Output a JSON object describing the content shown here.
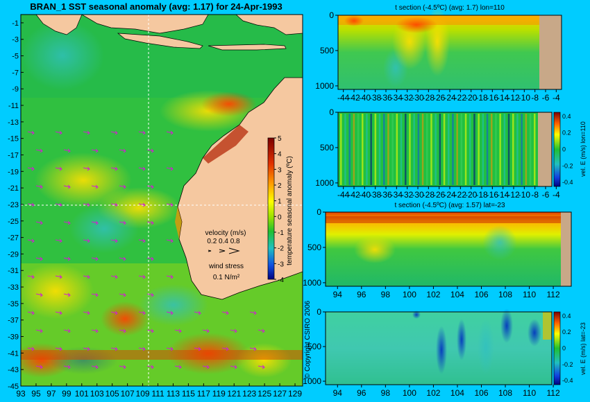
{
  "main_map": {
    "title": "BRAN_1 SST seasonal anomaly (avg: 1.17) for 24-Apr-1993",
    "y_ticks": [
      "-1",
      "-3",
      "-5",
      "-7",
      "-9",
      "-11",
      "-13",
      "-15",
      "-17",
      "-19",
      "-21",
      "-23",
      "-25",
      "-27",
      "-29",
      "-31",
      "-33",
      "-35",
      "-37",
      "-39",
      "-41",
      "-43",
      "-45"
    ],
    "x_ticks": [
      "93",
      "95",
      "97",
      "99",
      "101",
      "103",
      "105",
      "107",
      "109",
      "111",
      "113",
      "115",
      "117",
      "119",
      "121",
      "123",
      "125",
      "127",
      "129"
    ],
    "colorbar_label": "temperature seasonal anomaly (ºC)",
    "colorbar_ticks": [
      "5",
      "4",
      "3",
      "2",
      "1",
      "0",
      "-1",
      "-2",
      "-3",
      "-4"
    ],
    "velocity_label": "velocity (m/s)",
    "velocity_scale": "0.2 0.4 0.8",
    "wind_label": "wind stress",
    "wind_scale": "0.1 N/m²",
    "copyright": "© Copyright CSIRO 2006"
  },
  "section1": {
    "title": "t section (-4.5ºC) (avg: 1.7) lon=110",
    "x_ticks": [
      "-44",
      "-42",
      "-40",
      "-38",
      "-36",
      "-34",
      "-32",
      "-30",
      "-28",
      "-26",
      "-24",
      "-22",
      "-20",
      "-18",
      "-16",
      "-14",
      "-12",
      "-10",
      "-8",
      "-6",
      "-4"
    ],
    "y_ticks": [
      "0",
      "500",
      "1000"
    ]
  },
  "section2": {
    "title": "",
    "x_ticks": [
      "-44",
      "-42",
      "-40",
      "-38",
      "-36",
      "-34",
      "-32",
      "-30",
      "-28",
      "-26",
      "-24",
      "-22",
      "-20",
      "-18",
      "-16",
      "-14",
      "-12",
      "-10",
      "-8",
      "-6",
      "-4"
    ],
    "y_ticks": [
      "0",
      "500",
      "1000"
    ],
    "colorbar_label": "vel. E (m/s) lon=110",
    "colorbar_ticks": [
      "0.4",
      "0.2",
      "0",
      "-0.2",
      "-0.4"
    ]
  },
  "section3": {
    "title": "t section (-4.5ºC) (avg: 1.57) lat=-23",
    "x_ticks": [
      "94",
      "96",
      "98",
      "100",
      "102",
      "104",
      "106",
      "108",
      "110",
      "112"
    ],
    "y_ticks": [
      "0",
      "500",
      "1000"
    ]
  },
  "section4": {
    "title": "",
    "x_ticks": [
      "94",
      "96",
      "98",
      "100",
      "102",
      "104",
      "106",
      "108",
      "110",
      "112"
    ],
    "y_ticks": [
      "0",
      "500",
      "1000"
    ],
    "colorbar_label": "vel. E (m/s) lat=-23",
    "colorbar_ticks": [
      "0.4",
      "0.2",
      "0",
      "-0.2",
      "-0.4"
    ]
  },
  "colors": {
    "background": "#00ccff",
    "land": "#f5c8a0",
    "section_land": "#c8a888"
  },
  "chart_data": [
    {
      "type": "heatmap",
      "title": "BRAN_1 SST seasonal anomaly (avg: 1.17) for 24-Apr-1993",
      "xlim": [
        93,
        130
      ],
      "ylim": [
        -45,
        0
      ],
      "colorbar_range": [
        -4,
        5
      ],
      "units": "ºC",
      "average": 1.17
    },
    {
      "type": "heatmap",
      "title": "t section (-4.5ºC) (avg: 1.7) lon=110",
      "xlim": [
        -45,
        -3
      ],
      "ylim": [
        1050,
        0
      ],
      "average": 1.7
    },
    {
      "type": "heatmap",
      "xlim": [
        -45,
        -3
      ],
      "ylim": [
        1050,
        0
      ],
      "colorbar_range": [
        -0.4,
        0.4
      ],
      "colorbar_label": "vel. E (m/s) lon=110"
    },
    {
      "type": "heatmap",
      "title": "t section (-4.5ºC) (avg: 1.57) lat=-23",
      "xlim": [
        93,
        113.5
      ],
      "ylim": [
        1050,
        0
      ],
      "average": 1.57
    },
    {
      "type": "heatmap",
      "xlim": [
        93,
        113.5
      ],
      "ylim": [
        1050,
        0
      ],
      "colorbar_range": [
        -0.4,
        0.4
      ],
      "colorbar_label": "vel. E (m/s) lat=-23"
    }
  ]
}
